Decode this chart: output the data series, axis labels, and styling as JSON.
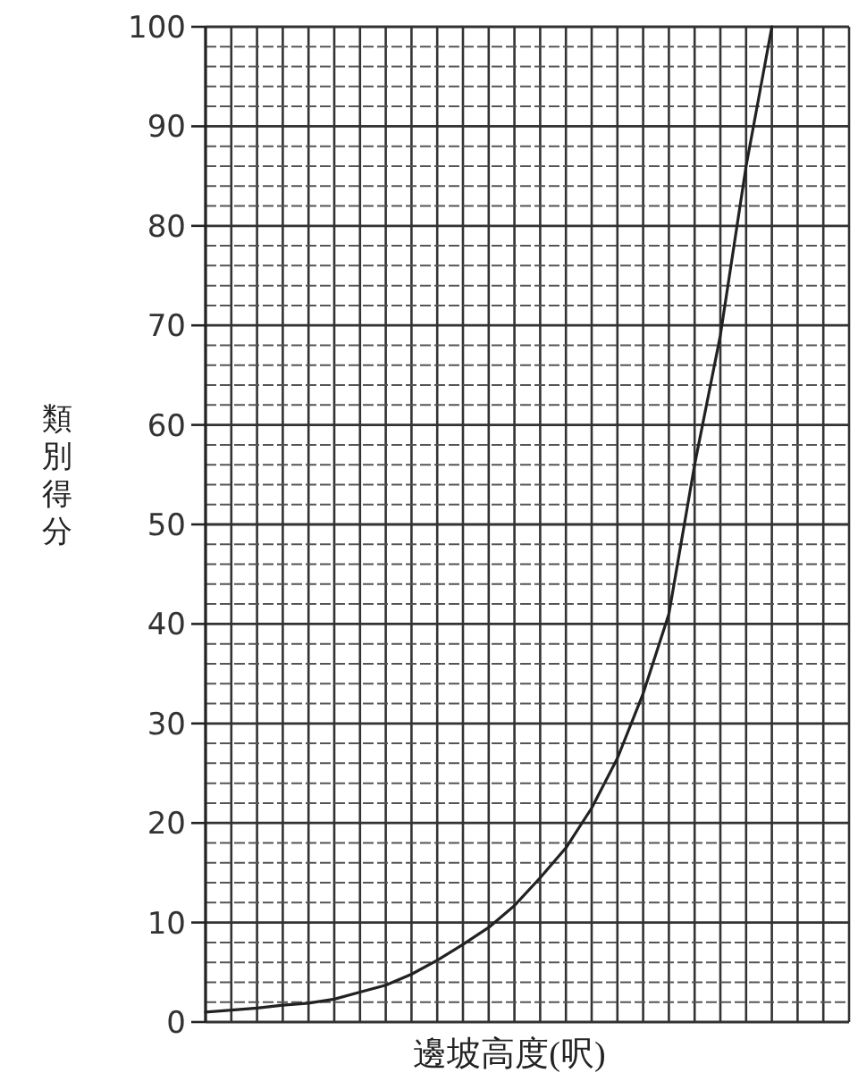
{
  "chart_data": {
    "type": "line",
    "xlabel": "邊坡高度(呎)",
    "ylabel": "類別得分",
    "categories": [
      null,
      null,
      null,
      null,
      null,
      null,
      null,
      null,
      null,
      null,
      null,
      null,
      null,
      null,
      null,
      null,
      null,
      null,
      null,
      null,
      null,
      null,
      null,
      null,
      null,
      null
    ],
    "series": [
      {
        "color": "#222222",
        "values": [
          1.0,
          1.2,
          1.4,
          1.7,
          1.9,
          2.3,
          3.0,
          3.7,
          4.8,
          6.2,
          7.8,
          9.5,
          11.7,
          14.5,
          17.5,
          21.5,
          26.5,
          33,
          41,
          56,
          69,
          86,
          100,
          null,
          null,
          null
        ]
      }
    ],
    "ylim": [
      0,
      100
    ],
    "yticks": [
      0,
      10,
      20,
      30,
      40,
      50,
      60,
      70,
      80,
      90,
      100
    ],
    "grid": true,
    "tick_labels": "y"
  }
}
